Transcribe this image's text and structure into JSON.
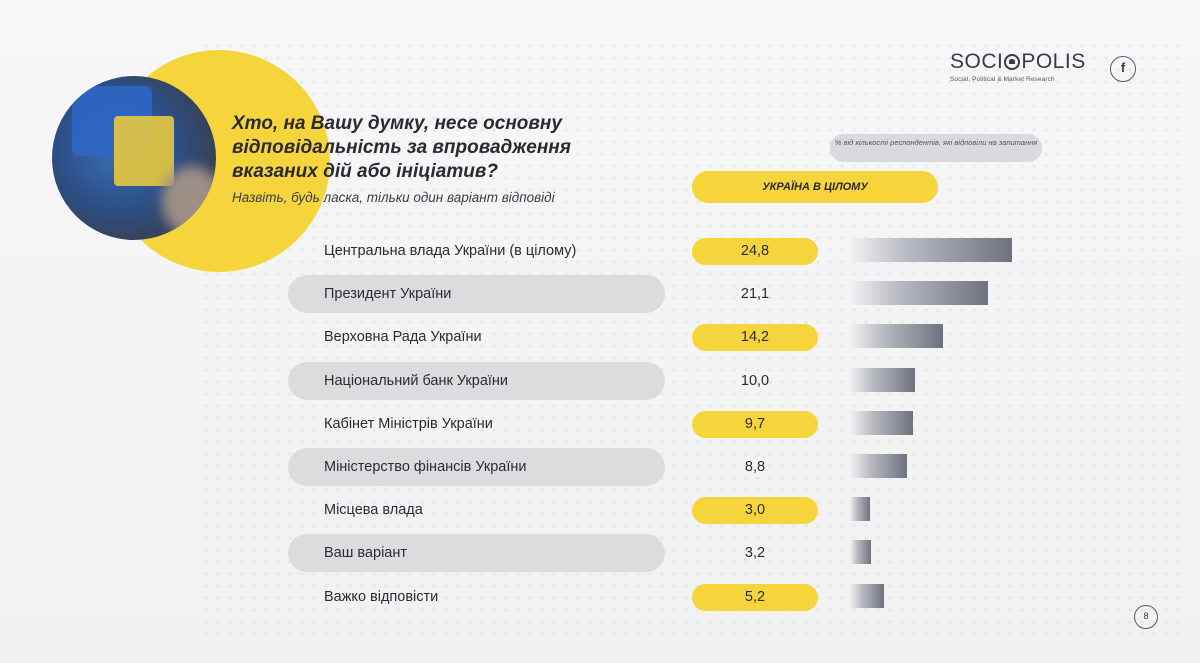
{
  "header": {
    "title": "Хто, на Вашу думку, несе основну відповідальність за впровадження вказаних дій або ініціатив?",
    "subtitle": "Назвіть, будь ласка, тільки один варіант відповіді"
  },
  "logo": {
    "name_left": "SOCI",
    "name_right": "POLIS",
    "tagline": "Social, Political & Market Research"
  },
  "note": "% від кількості респондентів, які відповіли на запитання",
  "column_header": "УКРАЇНА В ЦІЛОМУ",
  "page_number": "8",
  "colors": {
    "accent_yellow": "#f6d53c",
    "row_shade": "#dcdcdf",
    "bar_dark": "#6f727d"
  },
  "chart_data": {
    "type": "bar",
    "orientation": "horizontal",
    "categories": [
      "Центральна влада України (в цілому)",
      "Президент України",
      "Верховна Рада України",
      "Національний банк України",
      "Кабінет Міністрів України",
      "Міністерство фінансів України",
      "Місцева влада",
      "Ваш варіант",
      "Важко відповісти"
    ],
    "value_labels": [
      "24,8",
      "21,1",
      "14,2",
      "10,0",
      "9,7",
      "8,8",
      "3,0",
      "3,2",
      "5,2"
    ],
    "values": [
      24.8,
      21.1,
      14.2,
      10.0,
      9.7,
      8.8,
      3.0,
      3.2,
      5.2
    ],
    "xlim": [
      0,
      25
    ],
    "grid": false
  }
}
